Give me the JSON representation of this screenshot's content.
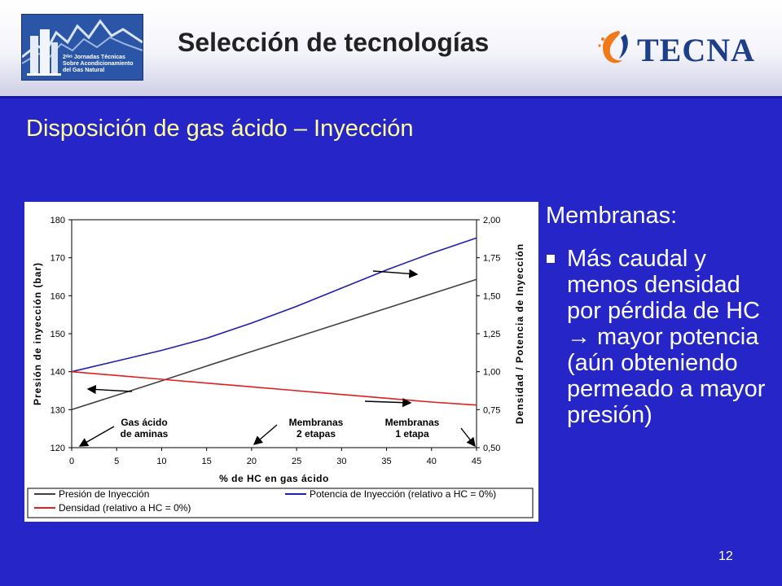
{
  "header": {
    "title": "Selección de tecnologías",
    "logo_left_text": "2ᵈᵃˢ Jornadas Técnicas Sobre Acondicionamiento del Gas Natural",
    "brand": "TECNA"
  },
  "slide": {
    "subtitle": "Disposición  de gas ácido – Inyección",
    "side_heading": "Membranas:",
    "bullet": "Más caudal y menos densidad por pérdida de HC → mayor potencia (aún obteniendo permeado a mayor presión)",
    "page_number": "12"
  },
  "colors": {
    "background": "#2525c8",
    "subtitle": "#ffff99",
    "pressure_line": "#404040",
    "power_line": "#1f1fb0",
    "density_line": "#e02020"
  },
  "chart_data": {
    "type": "line",
    "xlabel": "% de HC en gas ácido",
    "ylabel_left": "Presión de inyección (bar)",
    "ylabel_right": "Densidad / Potencia de Inyección",
    "xlim": [
      0,
      45
    ],
    "ylim_left": [
      120,
      180
    ],
    "ylim_right": [
      0.5,
      2.0
    ],
    "x_ticks": [
      "0",
      "5",
      "10",
      "15",
      "20",
      "25",
      "30",
      "35",
      "40",
      "45"
    ],
    "y_left_ticks": [
      "120",
      "130",
      "140",
      "150",
      "160",
      "170",
      "180"
    ],
    "y_right_ticks": [
      "0,50",
      "0,75",
      "1,00",
      "1,25",
      "1,50",
      "1,75",
      "2,00"
    ],
    "grid": false,
    "legend_position": "bottom",
    "x": [
      0,
      5,
      10,
      15,
      20,
      25,
      30,
      35,
      40,
      45
    ],
    "series": [
      {
        "name": "Presión de Inyección",
        "axis": "left",
        "color": "#404040",
        "values": [
          130,
          133.8,
          137.6,
          141.5,
          145.3,
          149.1,
          152.9,
          156.7,
          160.5,
          164.3
        ]
      },
      {
        "name": "Potencia de Inyección (relativo a HC = 0%)",
        "axis": "right",
        "color": "#1f1fb0",
        "values": [
          1.0,
          1.07,
          1.14,
          1.22,
          1.32,
          1.43,
          1.55,
          1.67,
          1.78,
          1.88
        ]
      },
      {
        "name": "Densidad (relativo a HC = 0%)",
        "axis": "right",
        "color": "#e02020",
        "values": [
          1.0,
          0.975,
          0.95,
          0.925,
          0.9,
          0.875,
          0.85,
          0.825,
          0.8,
          0.78
        ]
      }
    ],
    "annotations": [
      {
        "text": "Gas ácido de aminas",
        "x": 0,
        "y": 120
      },
      {
        "text": "Membranas 2 etapas",
        "x": 20,
        "y": 120
      },
      {
        "text": "Membranas 1 etapa",
        "x": 45,
        "y": 120
      }
    ]
  }
}
